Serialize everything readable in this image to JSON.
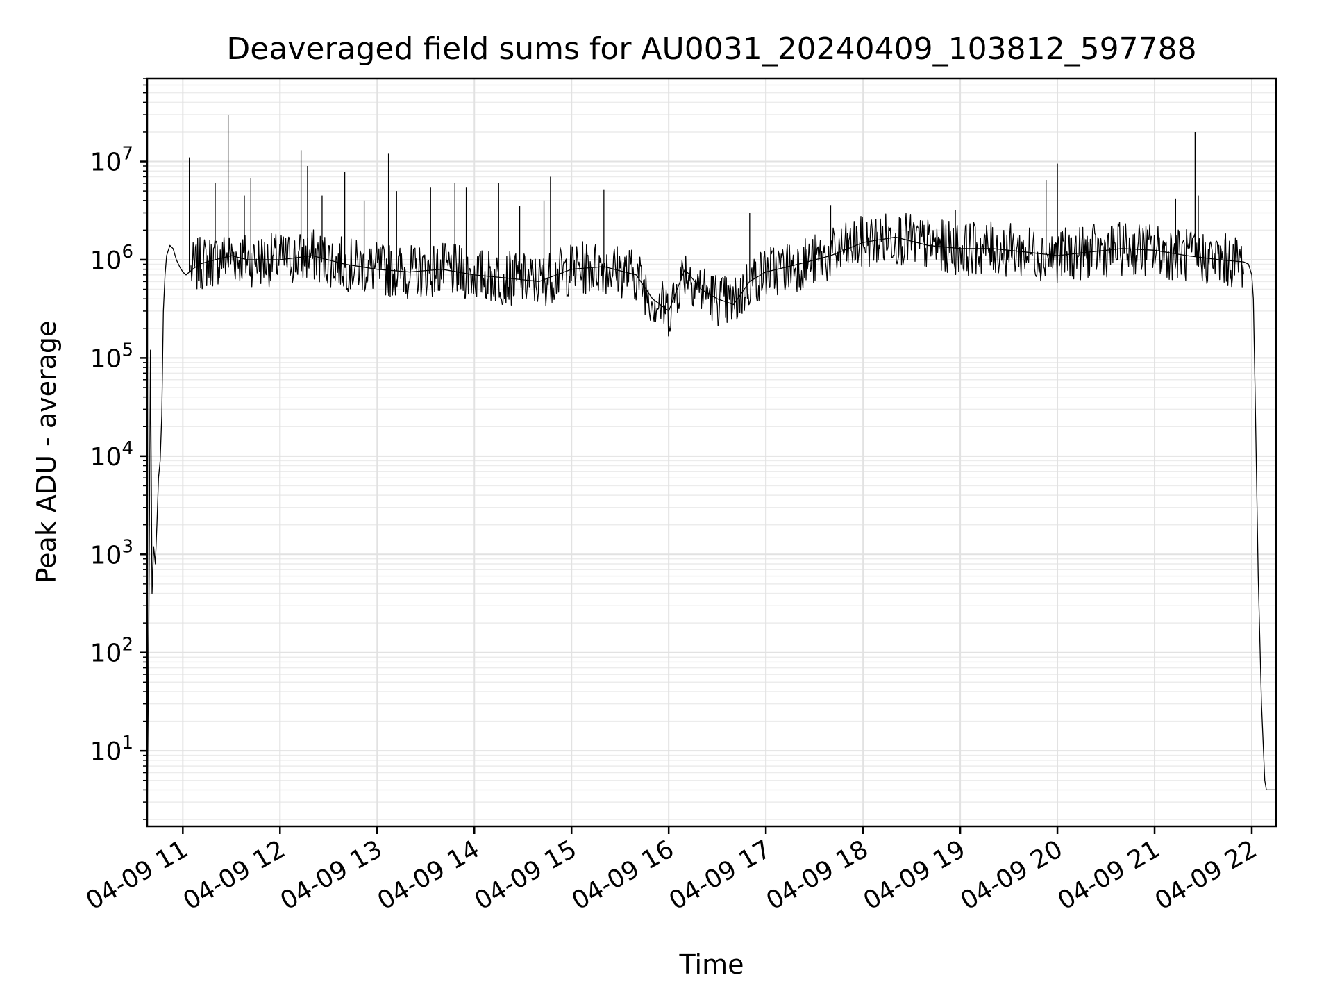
{
  "chart_data": {
    "type": "line",
    "title": "Deaveraged field sums for AU0031_20240409_103812_597788",
    "xlabel": "Time",
    "ylabel": "Peak ADU - average",
    "yscale": "log",
    "ylim": [
      1.7,
      70000000
    ],
    "xlim": [
      "2024-04-09 10:38",
      "2024-04-09 22:15"
    ],
    "x_ticks": [
      "04-09 11",
      "04-09 12",
      "04-09 13",
      "04-09 14",
      "04-09 15",
      "04-09 16",
      "04-09 17",
      "04-09 18",
      "04-09 19",
      "04-09 20",
      "04-09 21",
      "04-09 22"
    ],
    "y_ticks": [
      {
        "base": "10",
        "exp": "1"
      },
      {
        "base": "10",
        "exp": "2"
      },
      {
        "base": "10",
        "exp": "3"
      },
      {
        "base": "10",
        "exp": "4"
      },
      {
        "base": "10",
        "exp": "5"
      },
      {
        "base": "10",
        "exp": "6"
      },
      {
        "base": "10",
        "exp": "7"
      }
    ],
    "grid": true,
    "line_color": "#000000",
    "series": [
      {
        "x": [
          "2024-04-09 10:38",
          "2024-04-09 10:39",
          "2024-04-09 10:40",
          "2024-04-09 10:41",
          "2024-04-09 10:42",
          "2024-04-09 10:43",
          "2024-04-09 10:44",
          "2024-04-09 10:45",
          "2024-04-09 10:46",
          "2024-04-09 10:47",
          "2024-04-09 10:48",
          "2024-04-09 10:49",
          "2024-04-09 10:50",
          "2024-04-09 10:52",
          "2024-04-09 10:54",
          "2024-04-09 10:56",
          "2024-04-09 10:58",
          "2024-04-09 11:00",
          "2024-04-09 11:02",
          "2024-04-09 11:04",
          "2024-04-09 11:10",
          "2024-04-09 11:20",
          "2024-04-09 11:30",
          "2024-04-09 11:40",
          "2024-04-09 12:00",
          "2024-04-09 12:20",
          "2024-04-09 12:40",
          "2024-04-09 13:00",
          "2024-04-09 13:20",
          "2024-04-09 13:40",
          "2024-04-09 14:00",
          "2024-04-09 14:20",
          "2024-04-09 14:40",
          "2024-04-09 15:00",
          "2024-04-09 15:20",
          "2024-04-09 15:40",
          "2024-04-09 15:50",
          "2024-04-09 16:00",
          "2024-04-09 16:10",
          "2024-04-09 16:20",
          "2024-04-09 16:30",
          "2024-04-09 16:40",
          "2024-04-09 16:50",
          "2024-04-09 17:00",
          "2024-04-09 17:20",
          "2024-04-09 17:40",
          "2024-04-09 18:00",
          "2024-04-09 18:20",
          "2024-04-09 18:40",
          "2024-04-09 19:00",
          "2024-04-09 19:20",
          "2024-04-09 19:40",
          "2024-04-09 20:00",
          "2024-04-09 20:20",
          "2024-04-09 20:40",
          "2024-04-09 21:00",
          "2024-04-09 21:20",
          "2024-04-09 21:40",
          "2024-04-09 21:55",
          "2024-04-09 21:58",
          "2024-04-09 22:00",
          "2024-04-09 22:01",
          "2024-04-09 22:02",
          "2024-04-09 22:04",
          "2024-04-09 22:06",
          "2024-04-09 22:08",
          "2024-04-09 22:09",
          "2024-04-09 22:10",
          "2024-04-09 22:12",
          "2024-04-09 22:15"
        ],
        "values": [
          1.8,
          160,
          120000,
          400,
          1200,
          800,
          2000,
          6000,
          9000,
          26000,
          300000,
          700000,
          1100000,
          1400000,
          1300000,
          1000000,
          850000,
          750000,
          700000,
          750000,
          900000,
          1000000,
          1100000,
          1000000,
          1000000,
          1100000,
          900000,
          800000,
          750000,
          800000,
          700000,
          650000,
          600000,
          800000,
          850000,
          700000,
          400000,
          300000,
          800000,
          500000,
          400000,
          350000,
          600000,
          750000,
          900000,
          1100000,
          1500000,
          1700000,
          1400000,
          1300000,
          1300000,
          1200000,
          1100000,
          1200000,
          1300000,
          1250000,
          1100000,
          1000000,
          950000,
          900000,
          700000,
          400000,
          50000,
          600,
          30,
          5,
          4,
          4,
          4,
          4
        ]
      }
    ],
    "spikes": [
      {
        "x": "2024-04-09 11:04",
        "value": 11000000
      },
      {
        "x": "2024-04-09 11:20",
        "value": 6000000
      },
      {
        "x": "2024-04-09 11:28",
        "value": 30000000
      },
      {
        "x": "2024-04-09 11:38",
        "value": 4500000
      },
      {
        "x": "2024-04-09 11:42",
        "value": 6800000
      },
      {
        "x": "2024-04-09 12:13",
        "value": 13000000
      },
      {
        "x": "2024-04-09 12:17",
        "value": 9000000
      },
      {
        "x": "2024-04-09 12:26",
        "value": 4500000
      },
      {
        "x": "2024-04-09 12:40",
        "value": 7800000
      },
      {
        "x": "2024-04-09 12:52",
        "value": 4000000
      },
      {
        "x": "2024-04-09 13:07",
        "value": 12000000
      },
      {
        "x": "2024-04-09 13:12",
        "value": 5000000
      },
      {
        "x": "2024-04-09 13:33",
        "value": 5500000
      },
      {
        "x": "2024-04-09 13:48",
        "value": 6000000
      },
      {
        "x": "2024-04-09 13:55",
        "value": 5500000
      },
      {
        "x": "2024-04-09 14:15",
        "value": 6000000
      },
      {
        "x": "2024-04-09 14:28",
        "value": 3500000
      },
      {
        "x": "2024-04-09 14:43",
        "value": 4000000
      },
      {
        "x": "2024-04-09 14:47",
        "value": 7000000
      },
      {
        "x": "2024-04-09 15:20",
        "value": 5200000
      },
      {
        "x": "2024-04-09 16:50",
        "value": 3000000
      },
      {
        "x": "2024-04-09 17:40",
        "value": 3600000
      },
      {
        "x": "2024-04-09 18:57",
        "value": 3200000
      },
      {
        "x": "2024-04-09 19:53",
        "value": 6500000
      },
      {
        "x": "2024-04-09 20:00",
        "value": 9500000
      },
      {
        "x": "2024-04-09 21:13",
        "value": 4200000
      },
      {
        "x": "2024-04-09 21:25",
        "value": 20000000
      },
      {
        "x": "2024-04-09 21:27",
        "value": 4500000
      }
    ]
  }
}
